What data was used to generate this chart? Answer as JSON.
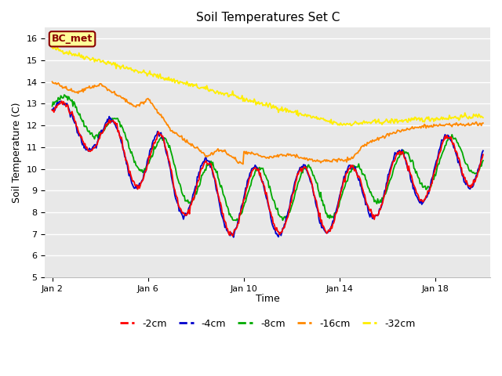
{
  "title": "Soil Temperatures Set C",
  "xlabel": "Time",
  "ylabel": "Soil Temperature (C)",
  "ylim": [
    5.0,
    16.5
  ],
  "yticks": [
    5.0,
    6.0,
    7.0,
    8.0,
    9.0,
    10.0,
    11.0,
    12.0,
    13.0,
    14.0,
    15.0,
    16.0
  ],
  "bg_color": "#e8e8e8",
  "fig_color": "#ffffff",
  "legend_label": "BC_met",
  "legend_bg": "#ffff99",
  "legend_border": "#8b0000",
  "colors": {
    "-2cm": "#ff0000",
    "-4cm": "#0000cc",
    "-8cm": "#00aa00",
    "-16cm": "#ff8800",
    "-32cm": "#ffee00"
  },
  "line_width": 1.3,
  "n_points": 500,
  "time_start": 2.0,
  "time_end": 20.0,
  "xlim": [
    1.7,
    20.3
  ],
  "xtick_positions": [
    2,
    6,
    10,
    14,
    18
  ],
  "xtick_labels": [
    "Jan 2",
    "Jan 6",
    "Jan 10",
    "Jan 14",
    "Jan 18"
  ]
}
